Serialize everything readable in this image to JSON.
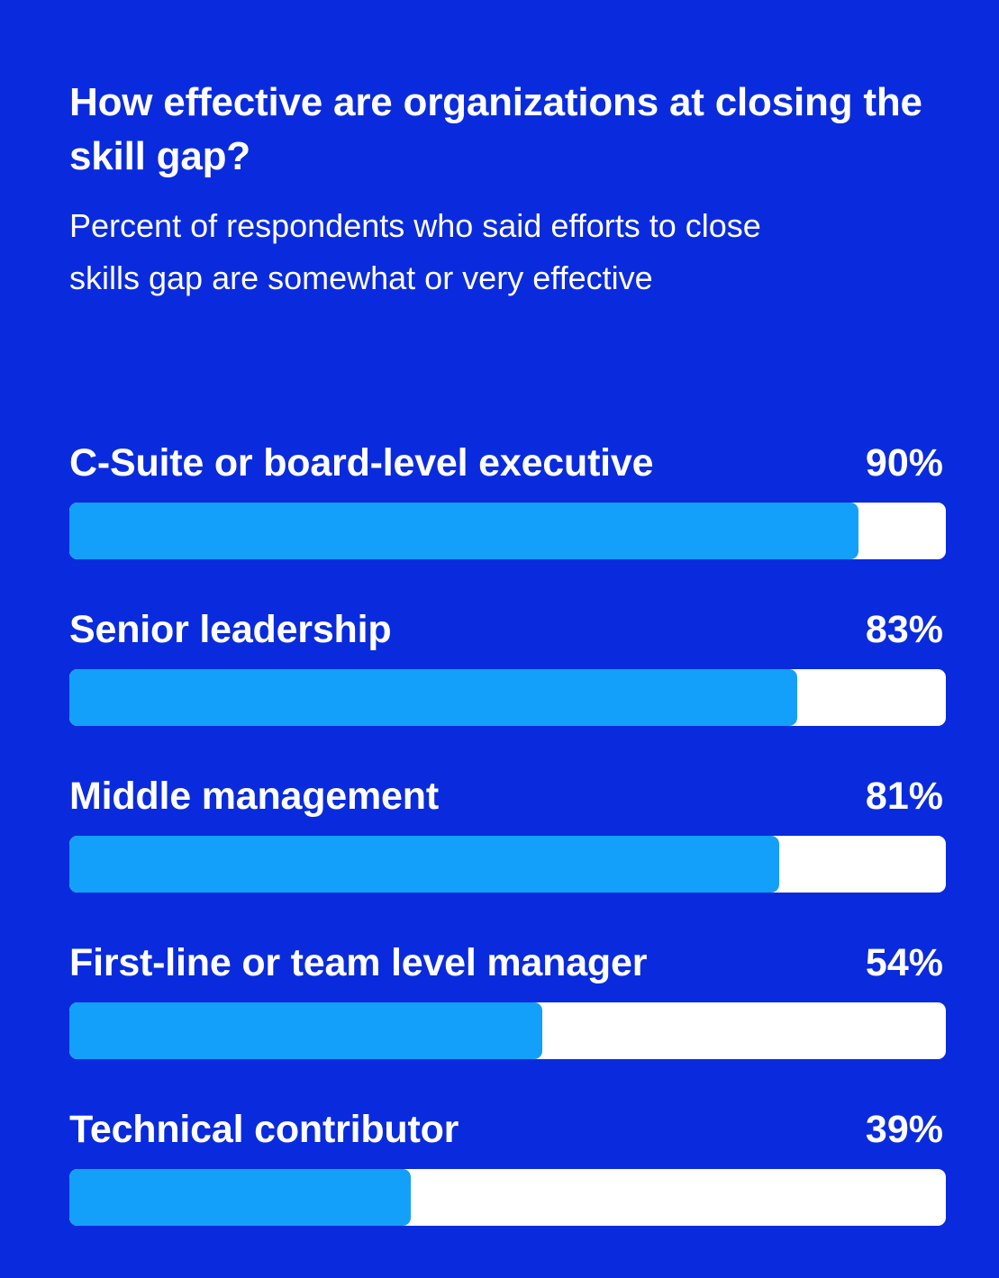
{
  "title": "How effective are organizations at closing the skill gap?",
  "subtitle": "Percent of respondents who said efforts to close skills gap are somewhat or very effective",
  "colors": {
    "background": "#0a2bdd",
    "bar_fill": "#12a0fa",
    "bar_track": "#ffffff",
    "text": "#ffffff"
  },
  "chart_data": {
    "type": "bar",
    "orientation": "horizontal",
    "title": "How effective are organizations at closing the skill gap?",
    "subtitle": "Percent of respondents who said efforts to close skills gap are somewhat or very effective",
    "categories": [
      "C-Suite or board-level executive",
      "Senior leadership",
      "Middle management",
      "First-line or team level manager",
      "Technical contributor"
    ],
    "values": [
      90,
      83,
      81,
      54,
      39
    ],
    "value_labels": [
      "90%",
      "83%",
      "81%",
      "54%",
      "39%"
    ],
    "xlim": [
      0,
      100
    ],
    "grid": false,
    "legend": "none"
  }
}
